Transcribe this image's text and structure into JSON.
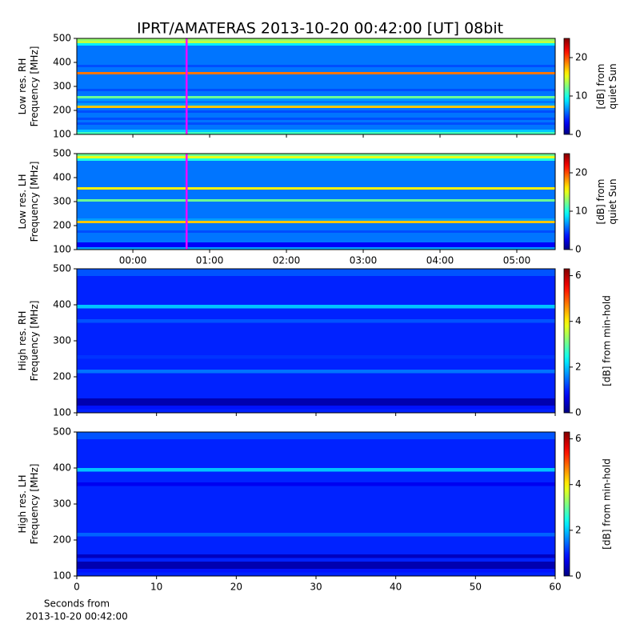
{
  "chart_data": [
    {
      "type": "heatmap",
      "title": "IPRT/AMATERAS 2013-10-20 00:42:00 [UT]   08bit",
      "ylabel": [
        "Low res. RH",
        "Frequency [MHz]"
      ],
      "ylim": [
        100,
        500
      ],
      "yticks": [
        100,
        200,
        300,
        400,
        500
      ],
      "xlim": [
        -0.73,
        5.5
      ],
      "xticks": [
        0,
        1,
        2,
        3,
        4,
        5
      ],
      "show_xticklabels": false,
      "y": [
        105,
        115,
        125,
        135,
        145,
        155,
        165,
        175,
        185,
        195,
        205,
        215,
        225,
        235,
        245,
        255,
        265,
        275,
        285,
        295,
        305,
        315,
        325,
        335,
        345,
        355,
        365,
        375,
        385,
        395,
        405,
        415,
        425,
        435,
        445,
        455,
        465,
        475,
        485,
        495
      ],
      "values": [
        11,
        8,
        6,
        6,
        5,
        6,
        5,
        6,
        6,
        5,
        6,
        17,
        7,
        6,
        7,
        12,
        6,
        6,
        5,
        6,
        6,
        6,
        6,
        6,
        6,
        19,
        6,
        6,
        5,
        6,
        6,
        6,
        6,
        6,
        6,
        6,
        6,
        9,
        14,
        13
      ],
      "colormap": "jet",
      "clim": [
        0,
        25
      ],
      "cticks": [
        0,
        10,
        20
      ],
      "colorbar_label": [
        "[dB] from",
        "quiet Sun"
      ],
      "markers": [
        0.7
      ],
      "marker_color": "#ff00ff"
    },
    {
      "type": "heatmap",
      "ylabel": [
        "Low res. LH",
        "Frequency [MHz]"
      ],
      "ylim": [
        100,
        500
      ],
      "yticks": [
        100,
        200,
        300,
        400,
        500
      ],
      "xlim": [
        -0.73,
        5.5
      ],
      "xticks": [
        {
          "value": 0,
          "label": "00:00"
        },
        {
          "value": 1,
          "label": "01:00"
        },
        {
          "value": 2,
          "label": "02:00"
        },
        {
          "value": 3,
          "label": "03:00"
        },
        {
          "value": 4,
          "label": "04:00"
        },
        {
          "value": 5,
          "label": "05:00"
        }
      ],
      "show_xticklabels": true,
      "y": [
        105,
        115,
        125,
        135,
        145,
        155,
        165,
        175,
        185,
        195,
        205,
        215,
        225,
        235,
        245,
        255,
        265,
        275,
        285,
        295,
        305,
        315,
        325,
        335,
        345,
        355,
        365,
        375,
        385,
        395,
        405,
        415,
        425,
        435,
        445,
        455,
        465,
        475,
        485,
        495
      ],
      "values": [
        7,
        3,
        3,
        6,
        6,
        6,
        6,
        5,
        6,
        6,
        6,
        17,
        7,
        6,
        6,
        6,
        6,
        6,
        6,
        6,
        12,
        6,
        6,
        6,
        6,
        16,
        6,
        6,
        6,
        6,
        6,
        6,
        6,
        6,
        6,
        6,
        6,
        10,
        15,
        12
      ],
      "colormap": "jet",
      "clim": [
        0,
        25
      ],
      "cticks": [
        0,
        10,
        20
      ],
      "colorbar_label": [
        "[dB] from",
        "quiet Sun"
      ],
      "markers": [
        0.7
      ],
      "marker_color": "#ff00ff"
    },
    {
      "type": "heatmap",
      "ylabel": [
        "High res. RH",
        "Frequency [MHz]"
      ],
      "ylim": [
        100,
        500
      ],
      "yticks": [
        100,
        200,
        300,
        400,
        500
      ],
      "xlim": [
        0,
        60
      ],
      "xticks": [
        0,
        10,
        20,
        30,
        40,
        50,
        60
      ],
      "show_xticklabels": false,
      "y": [
        105,
        115,
        125,
        135,
        145,
        155,
        165,
        175,
        185,
        195,
        205,
        215,
        225,
        235,
        245,
        255,
        265,
        275,
        285,
        295,
        305,
        315,
        325,
        335,
        345,
        355,
        365,
        375,
        385,
        395,
        405,
        415,
        425,
        435,
        445,
        455,
        465,
        475,
        485,
        495
      ],
      "values": [
        1.0,
        0.9,
        0.3,
        0.3,
        1.0,
        1.0,
        1.0,
        1.0,
        1.0,
        1.0,
        1.0,
        1.5,
        1.0,
        1.0,
        1.0,
        1.1,
        1.0,
        1.0,
        1.0,
        1.0,
        1.0,
        1.0,
        1.0,
        1.0,
        1.0,
        1.3,
        1.0,
        1.0,
        1.0,
        2.0,
        1.0,
        1.0,
        1.0,
        1.0,
        1.0,
        1.0,
        1.0,
        1.0,
        1.3,
        1.3
      ],
      "colormap": "jet",
      "clim": [
        0,
        6.3
      ],
      "cticks": [
        0,
        2,
        4,
        6
      ],
      "colorbar_label": [
        "[dB] from min-hold"
      ]
    },
    {
      "type": "heatmap",
      "ylabel": [
        "High res. LH",
        "Frequency [MHz]"
      ],
      "ylim": [
        100,
        500
      ],
      "yticks": [
        100,
        200,
        300,
        400,
        500
      ],
      "xlim": [
        0,
        60
      ],
      "xticks": [
        0,
        10,
        20,
        30,
        40,
        50,
        60
      ],
      "show_xticklabels": true,
      "xlabel": [
        "Seconds from",
        "2013-10-20 00:42:00"
      ],
      "y": [
        105,
        115,
        125,
        135,
        145,
        155,
        165,
        175,
        185,
        195,
        205,
        215,
        225,
        235,
        245,
        255,
        265,
        275,
        285,
        295,
        305,
        315,
        325,
        335,
        345,
        355,
        365,
        375,
        385,
        395,
        405,
        415,
        425,
        435,
        445,
        455,
        465,
        475,
        485,
        495
      ],
      "values": [
        1.0,
        0.9,
        0.3,
        0.3,
        1.0,
        0.4,
        1.0,
        1.0,
        1.0,
        1.0,
        1.0,
        1.4,
        1.0,
        1.0,
        1.0,
        1.0,
        1.0,
        1.0,
        1.0,
        1.0,
        1.0,
        1.0,
        1.0,
        1.0,
        1.0,
        0.7,
        1.0,
        1.0,
        1.0,
        2.0,
        1.0,
        1.0,
        1.0,
        1.0,
        1.0,
        1.0,
        1.0,
        1.0,
        1.3,
        1.3
      ],
      "colormap": "jet",
      "clim": [
        0,
        6.3
      ],
      "cticks": [
        0,
        2,
        4,
        6
      ],
      "colorbar_label": [
        "[dB] from min-hold"
      ]
    }
  ]
}
